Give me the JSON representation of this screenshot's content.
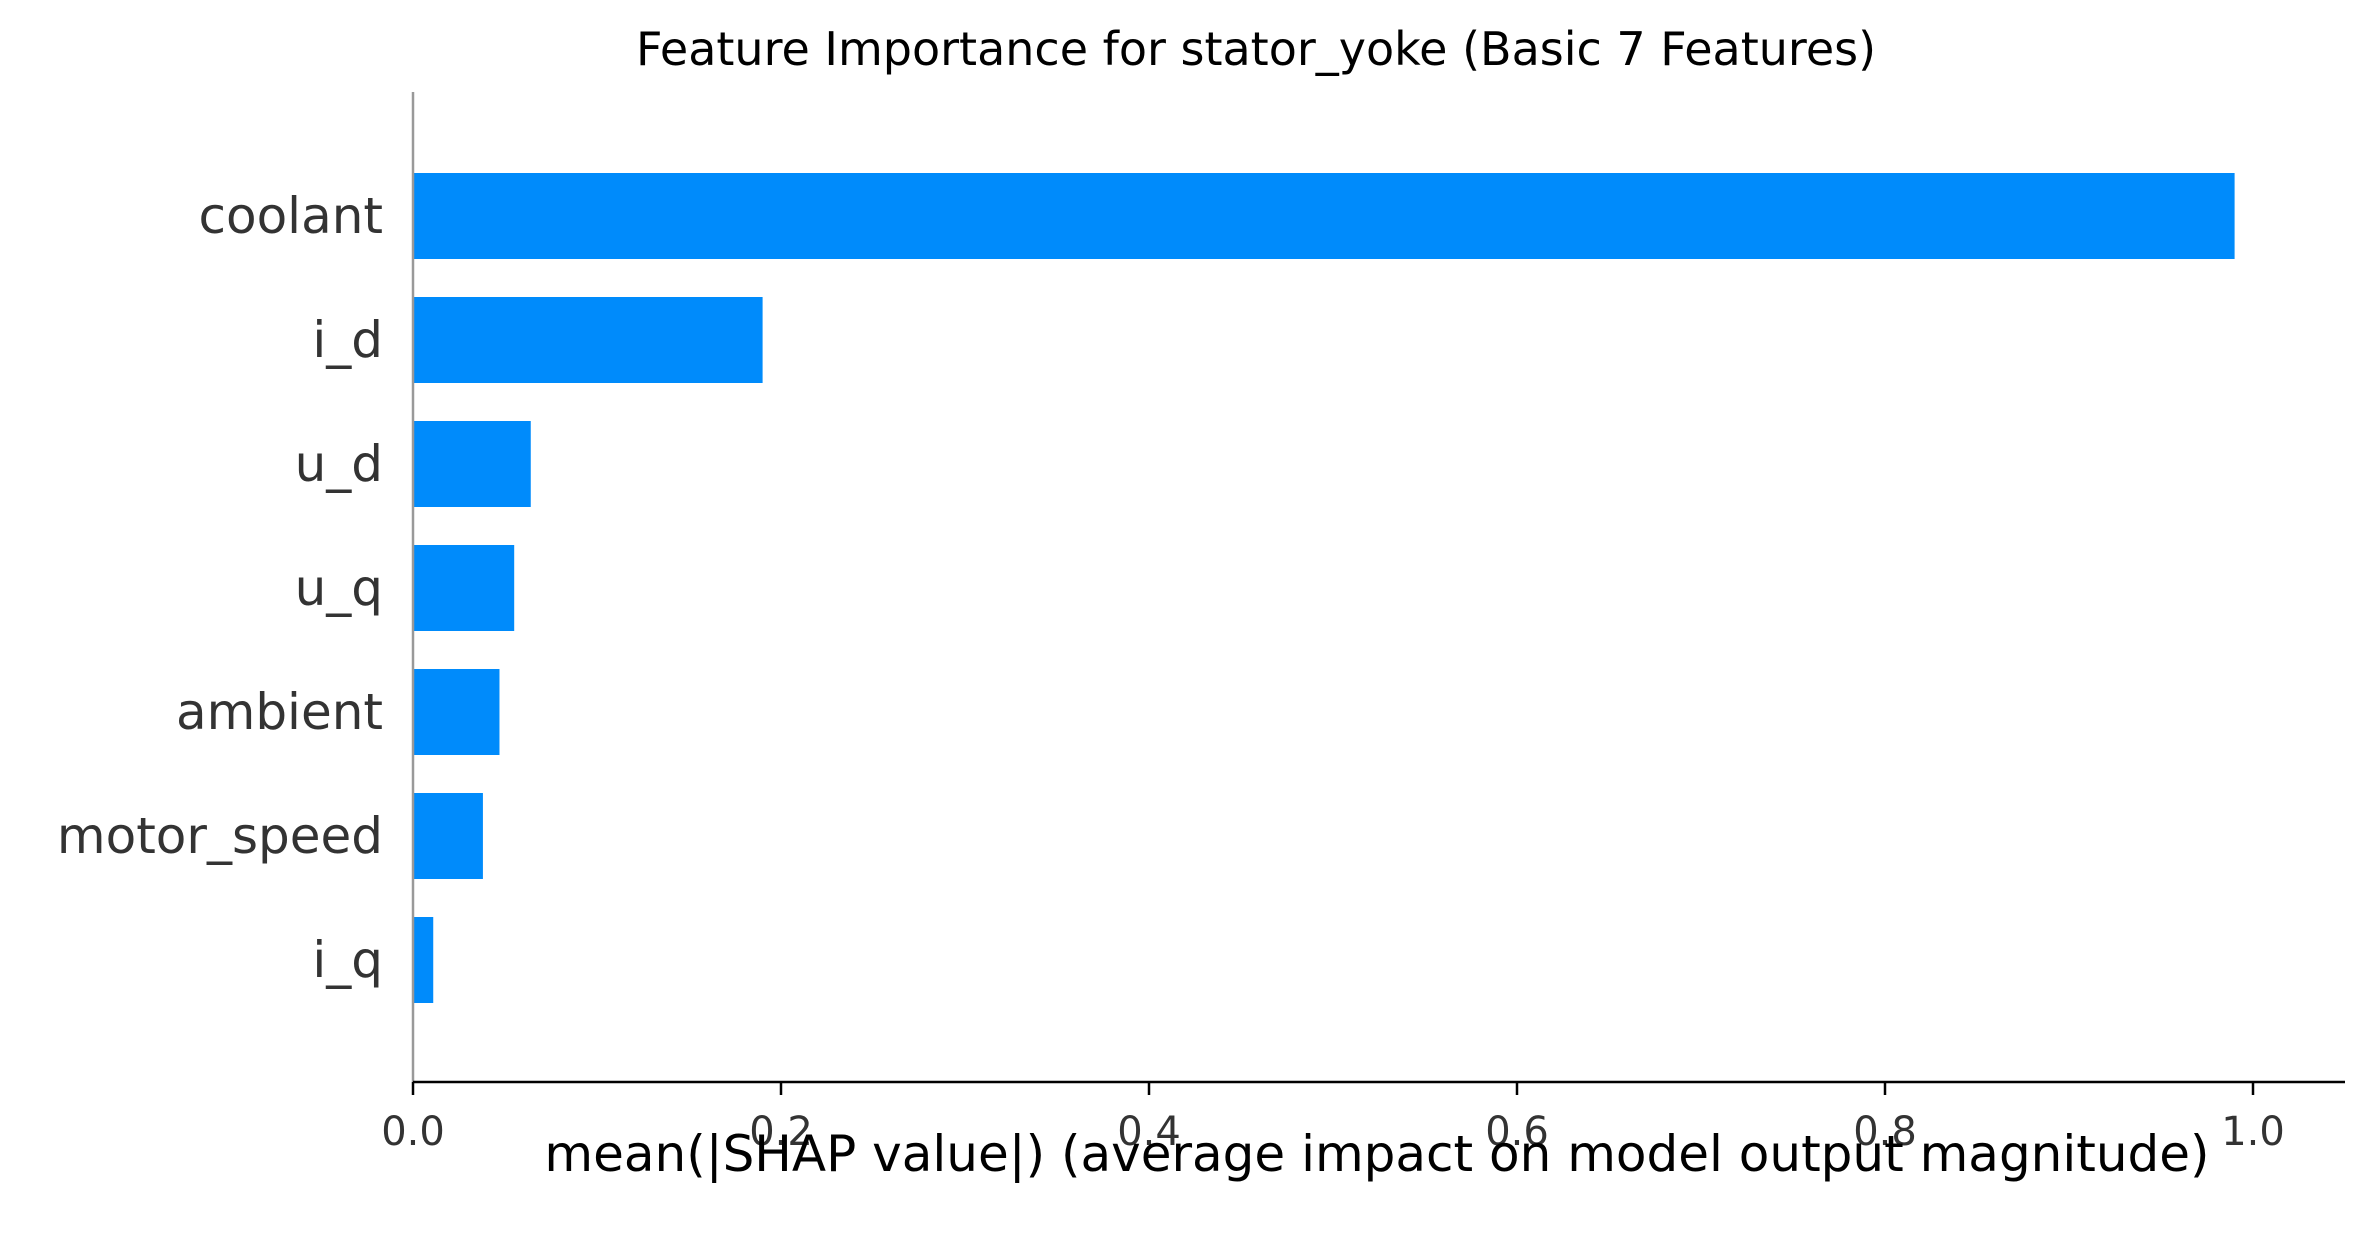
{
  "chart_data": {
    "type": "bar",
    "orientation": "horizontal",
    "title": "Feature Importance for stator_yoke (Basic 7 Features)",
    "xlabel": "mean(|SHAP value|) (average impact on model output magnitude)",
    "ylabel": "",
    "categories": [
      "coolant",
      "i_d",
      "u_d",
      "u_q",
      "ambient",
      "motor_speed",
      "i_q"
    ],
    "values": [
      0.99,
      0.19,
      0.064,
      0.055,
      0.047,
      0.038,
      0.011
    ],
    "xlim": [
      0,
      1.04
    ],
    "xticks": [
      0.0,
      0.2,
      0.4,
      0.6,
      0.8,
      1.0
    ],
    "xtick_labels": [
      "0.0",
      "0.2",
      "0.4",
      "0.6",
      "0.8",
      "1.0"
    ],
    "bar_color": "#008bfb",
    "grid": false,
    "legend": "none"
  }
}
